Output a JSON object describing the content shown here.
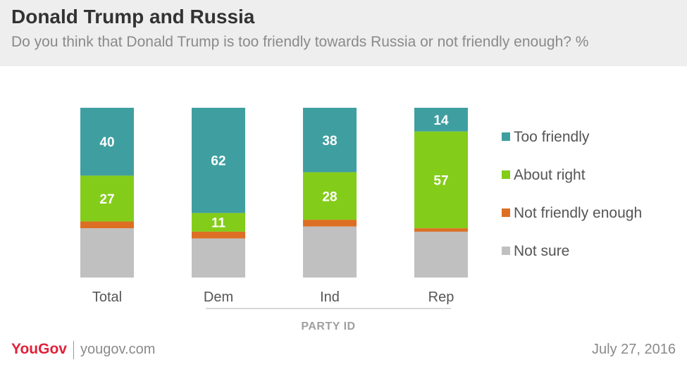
{
  "header": {
    "title": "Donald Trump and Russia",
    "subtitle": "Do you think that Donald Trump is too friendly towards Russia or not friendly enough? %"
  },
  "chart_data": {
    "type": "bar",
    "stacked": true,
    "categories": [
      "Total",
      "Dem",
      "Ind",
      "Rep"
    ],
    "group_label": "PARTY ID",
    "series": [
      {
        "name": "Too friendly",
        "color": "#3f9fa0",
        "values": [
          40,
          62,
          38,
          14
        ],
        "labeled": true
      },
      {
        "name": "About right",
        "color": "#84cc1a",
        "values": [
          27,
          11,
          28,
          57
        ],
        "labeled": true
      },
      {
        "name": "Not friendly enough",
        "color": "#dd6f24",
        "values": [
          4,
          4,
          4,
          2
        ],
        "labeled": false
      },
      {
        "name": "Not sure",
        "color": "#c0c0c0",
        "values": [
          29,
          23,
          30,
          27
        ],
        "labeled": false
      }
    ],
    "ylim": [
      0,
      100
    ],
    "legend_position": "right"
  },
  "footer": {
    "brand": "YouGov",
    "url": "yougov.com",
    "date": "July 27, 2016"
  }
}
